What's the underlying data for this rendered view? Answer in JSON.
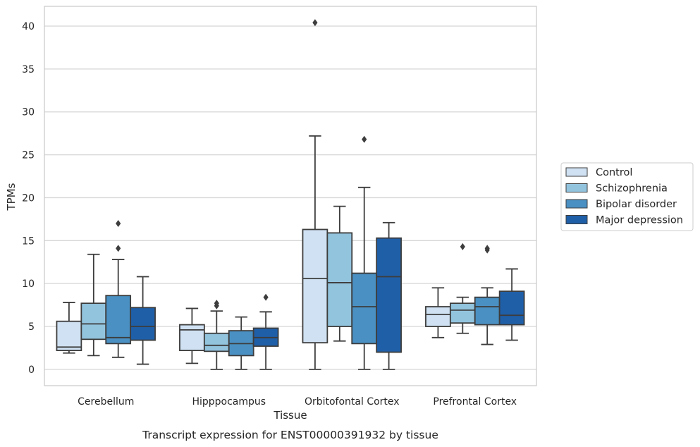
{
  "chart_data": {
    "type": "boxplot",
    "title": "",
    "caption": "Transcript expression for ENST00000391932 by tissue",
    "xlabel": "Tissue",
    "ylabel": "TPMs",
    "ylim": [
      -1.9,
      42.3
    ],
    "yticks": [
      0,
      5,
      10,
      15,
      20,
      25,
      30,
      35,
      40
    ],
    "grid": "horizontal",
    "legend_position": "right",
    "categories": [
      "Cerebellum",
      "Hipppocampus",
      "Orbitofontal Cortex",
      "Prefrontal Cortex"
    ],
    "series": [
      {
        "name": "Control",
        "color": "#cfe1f2",
        "boxes": [
          {
            "whisker_low": 1.9,
            "q1": 2.2,
            "median": 2.6,
            "q3": 5.6,
            "whisker_high": 7.8,
            "outliers": []
          },
          {
            "whisker_low": 0.7,
            "q1": 2.2,
            "median": 4.6,
            "q3": 5.2,
            "whisker_high": 7.1,
            "outliers": []
          },
          {
            "whisker_low": 0.0,
            "q1": 3.1,
            "median": 10.6,
            "q3": 16.3,
            "whisker_high": 27.2,
            "outliers": [
              40.4
            ]
          },
          {
            "whisker_low": 3.7,
            "q1": 5.0,
            "median": 6.4,
            "q3": 7.3,
            "whisker_high": 9.5,
            "outliers": []
          }
        ]
      },
      {
        "name": "Schizophrenia",
        "color": "#93c4de",
        "boxes": [
          {
            "whisker_low": 1.6,
            "q1": 3.5,
            "median": 5.3,
            "q3": 7.7,
            "whisker_high": 13.4,
            "outliers": []
          },
          {
            "whisker_low": 0.0,
            "q1": 2.1,
            "median": 2.8,
            "q3": 4.2,
            "whisker_high": 6.8,
            "outliers": [
              7.4,
              7.7
            ]
          },
          {
            "whisker_low": 3.3,
            "q1": 5.0,
            "median": 10.1,
            "q3": 15.9,
            "whisker_high": 19.0,
            "outliers": []
          },
          {
            "whisker_low": 4.2,
            "q1": 5.4,
            "median": 6.9,
            "q3": 7.7,
            "whisker_high": 8.4,
            "outliers": [
              14.3
            ]
          }
        ]
      },
      {
        "name": "Bipolar disorder",
        "color": "#4a90c2",
        "boxes": [
          {
            "whisker_low": 1.4,
            "q1": 3.0,
            "median": 3.7,
            "q3": 8.6,
            "whisker_high": 12.8,
            "outliers": [
              14.1,
              17.0
            ]
          },
          {
            "whisker_low": 0.0,
            "q1": 1.6,
            "median": 3.0,
            "q3": 4.5,
            "whisker_high": 6.1,
            "outliers": []
          },
          {
            "whisker_low": 0.0,
            "q1": 3.0,
            "median": 7.3,
            "q3": 11.2,
            "whisker_high": 21.2,
            "outliers": [
              26.8
            ]
          },
          {
            "whisker_low": 2.9,
            "q1": 5.2,
            "median": 7.3,
            "q3": 8.4,
            "whisker_high": 9.5,
            "outliers": [
              13.9,
              14.1
            ]
          }
        ]
      },
      {
        "name": "Major depression",
        "color": "#1f5fa8",
        "boxes": [
          {
            "whisker_low": 0.6,
            "q1": 3.4,
            "median": 5.0,
            "q3": 7.2,
            "whisker_high": 10.8,
            "outliers": []
          },
          {
            "whisker_low": 0.0,
            "q1": 2.7,
            "median": 3.7,
            "q3": 4.8,
            "whisker_high": 6.7,
            "outliers": [
              8.4
            ]
          },
          {
            "whisker_low": 0.0,
            "q1": 2.0,
            "median": 10.8,
            "q3": 15.3,
            "whisker_high": 17.1,
            "outliers": []
          },
          {
            "whisker_low": 3.4,
            "q1": 5.2,
            "median": 6.3,
            "q3": 9.1,
            "whisker_high": 11.7,
            "outliers": []
          }
        ]
      }
    ]
  }
}
